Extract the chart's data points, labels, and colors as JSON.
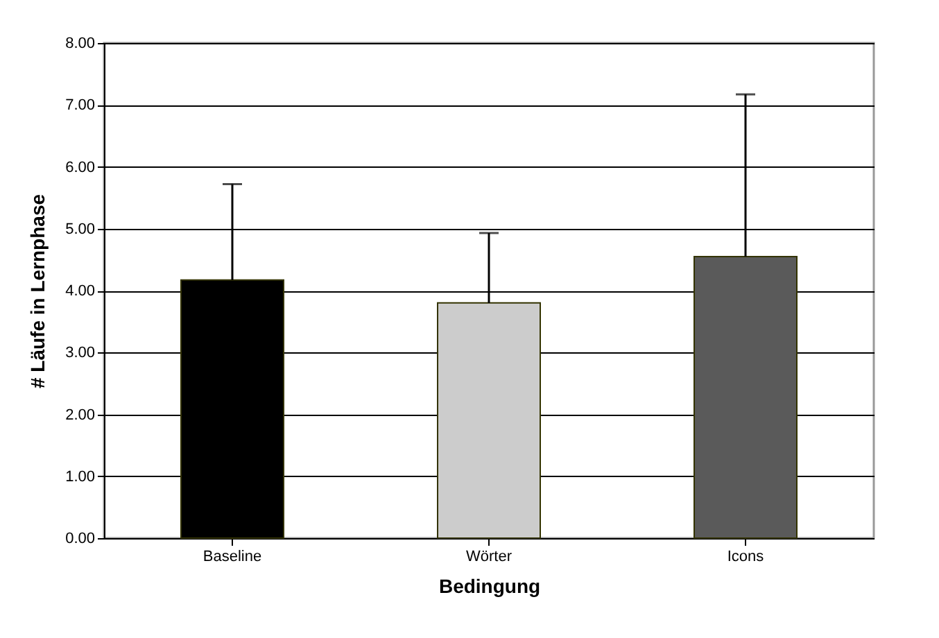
{
  "chart_data": {
    "type": "bar",
    "xlabel": "Bedingung",
    "ylabel": "# Läufe in Lernphase",
    "categories": [
      "Baseline",
      "Wörter",
      "Icons"
    ],
    "values": [
      4.17,
      3.8,
      4.55
    ],
    "colors": [
      "#000000",
      "#cccccc",
      "#5a5a5a"
    ],
    "errors": [
      [
        4.17,
        5.72
      ],
      [
        3.8,
        4.93
      ],
      [
        4.55,
        7.17
      ]
    ],
    "ylim": [
      0,
      8
    ],
    "yticks": [
      {
        "value": 0,
        "label": "0.00"
      },
      {
        "value": 1,
        "label": "1.00"
      },
      {
        "value": 2,
        "label": "2.00"
      },
      {
        "value": 3,
        "label": "3.00"
      },
      {
        "value": 4,
        "label": "4.00"
      },
      {
        "value": 5,
        "label": "5.00"
      },
      {
        "value": 6,
        "label": "6.00"
      },
      {
        "value": 7,
        "label": "7.00"
      },
      {
        "value": 8,
        "label": "8.00"
      }
    ],
    "grid": "y",
    "legend": false
  }
}
